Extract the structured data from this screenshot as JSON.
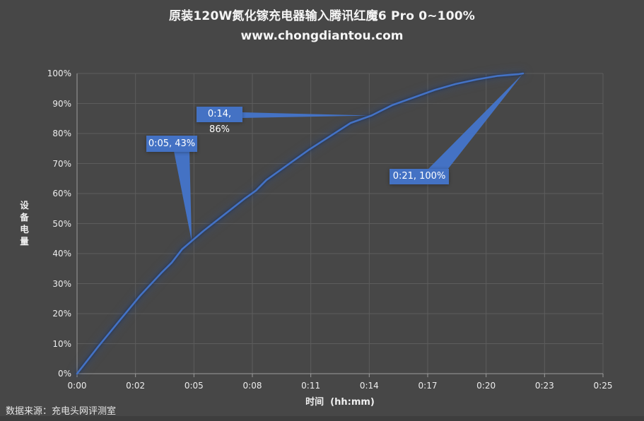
{
  "page": {
    "source_note": "数据来源：充电头网评测室"
  },
  "colors": {
    "background": "#474747",
    "accent_blue": "#4472c4",
    "text_primary": "#f2f2f2",
    "gridline": "#5d5d5d",
    "axis_line": "#9c9c9c",
    "bottom_strip": "#3e3e3e"
  },
  "chart_data": {
    "type": "line",
    "title": "原装120W氮化镓充电器输入腾讯红魔6 Pro 0~100%",
    "subtitle": "www.chongdiantou.com",
    "xlabel": "时间  (hh:mm)",
    "ylabel": "设备电量",
    "x_unit": "minutes",
    "y_unit": "percent",
    "xlim": [
      0,
      25
    ],
    "ylim": [
      0,
      100
    ],
    "grid": true,
    "legend": "none",
    "x_tick_labels": [
      "0:00",
      "0:02",
      "0:05",
      "0:08",
      "0:11",
      "0:14",
      "0:17",
      "0:20",
      "0:23",
      "0:25"
    ],
    "y_tick_labels": [
      "0%",
      "10%",
      "20%",
      "30%",
      "40%",
      "50%",
      "60%",
      "70%",
      "80%",
      "90%",
      "100%"
    ],
    "series": [
      {
        "name": "设备电量",
        "color": "#4472c4",
        "points": [
          [
            0,
            0
          ],
          [
            1,
            9
          ],
          [
            2,
            17.5
          ],
          [
            3,
            26
          ],
          [
            4,
            33.5
          ],
          [
            4.5,
            37
          ],
          [
            5,
            41.5
          ],
          [
            6,
            47.5
          ],
          [
            7,
            53
          ],
          [
            8,
            58.5
          ],
          [
            8.5,
            61
          ],
          [
            9,
            64.5
          ],
          [
            10,
            69.5
          ],
          [
            11,
            74.5
          ],
          [
            12,
            79
          ],
          [
            13,
            83.5
          ],
          [
            14,
            86
          ],
          [
            15,
            89.5
          ],
          [
            16,
            92
          ],
          [
            17,
            94.5
          ],
          [
            18,
            96.5
          ],
          [
            19,
            98
          ],
          [
            20,
            99.2
          ],
          [
            21,
            99.8
          ],
          [
            21.2,
            100
          ]
        ]
      }
    ],
    "annotations": [
      {
        "label": "0:05, 43%",
        "anchor_min": 5.45,
        "anchor_pct": 44
      },
      {
        "label": "0:14, 86%",
        "anchor_min": 14,
        "anchor_pct": 86
      },
      {
        "label": "0:21, 100%",
        "anchor_min": 21.2,
        "anchor_pct": 100
      }
    ]
  }
}
